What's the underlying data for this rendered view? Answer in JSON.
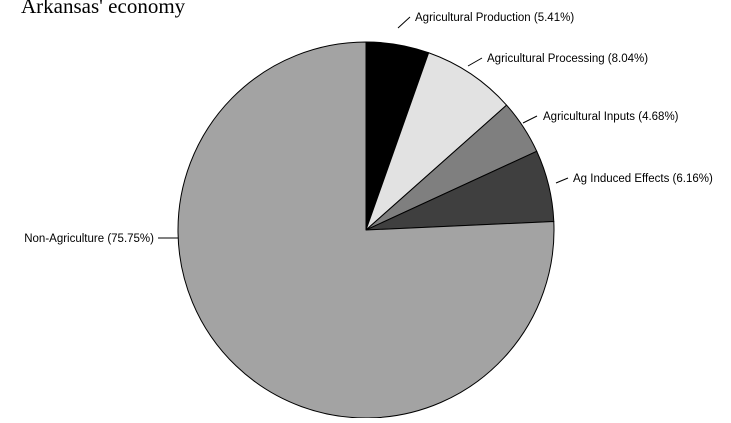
{
  "chart_data": {
    "type": "pie",
    "title": "Arkansas' economy",
    "start_angle_deg": 0,
    "direction": "clockwise",
    "slices": [
      {
        "label": "Agricultural Production (5.41%)",
        "value": 5.41,
        "color": "#000000"
      },
      {
        "label": "Agricultural Processing (8.04%)",
        "value": 8.04,
        "color": "#e2e2e2"
      },
      {
        "label": "Agricultural Inputs (4.68%)",
        "value": 4.68,
        "color": "#7f7f7f"
      },
      {
        "label": "Ag Induced Effects (6.16%)",
        "value": 6.16,
        "color": "#3f3f3f"
      },
      {
        "label": "Non-Agriculture (75.75%)",
        "value": 75.75,
        "color": "#a3a3a3"
      }
    ]
  }
}
